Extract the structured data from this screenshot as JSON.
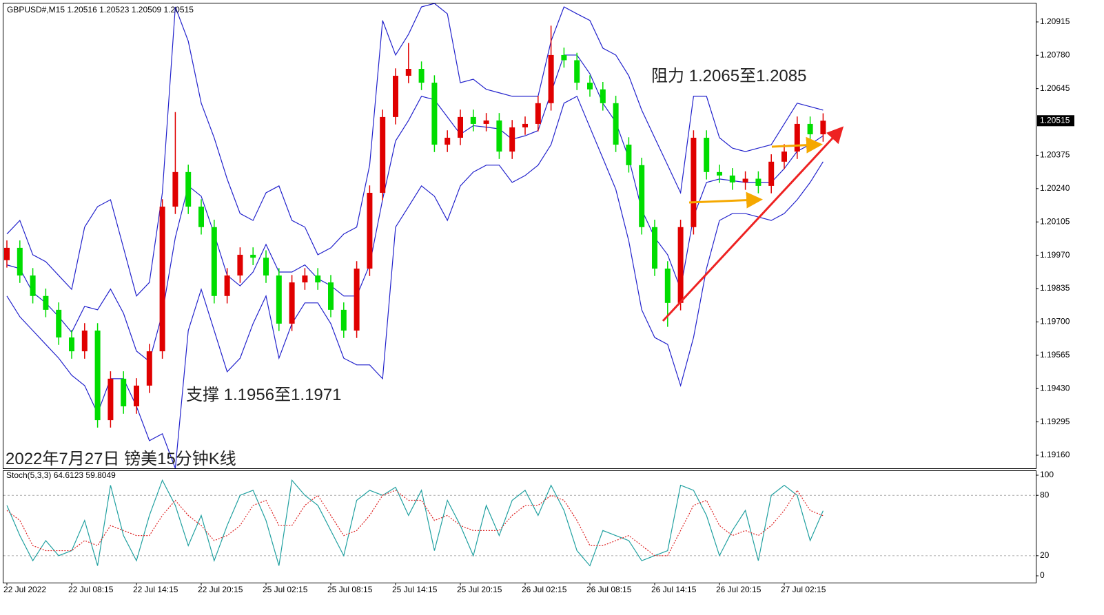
{
  "chart_data": [
    {
      "type": "candlestick",
      "title": "GBPUSD#,M15  1.20516 1.20523 1.20509 1.20515",
      "annotations": [
        "阻力 1.2065至1.2085",
        "支撑 1.1956至1.1971",
        "2022年7月27日 镑美15分钟K线"
      ],
      "categories": [
        "22 Jul 2022",
        null,
        null,
        null,
        null,
        "22 Jul 08:15",
        null,
        null,
        null,
        null,
        "22 Jul 14:15",
        null,
        null,
        null,
        null,
        "22 Jul 20:15",
        null,
        null,
        null,
        null,
        "25 Jul 02:15",
        null,
        null,
        null,
        null,
        "25 Jul 08:15",
        null,
        null,
        null,
        null,
        "25 Jul 14:15",
        null,
        null,
        null,
        null,
        "25 Jul 20:15",
        null,
        null,
        null,
        null,
        "26 Jul 02:15",
        null,
        null,
        null,
        null,
        "26 Jul 08:15",
        null,
        null,
        null,
        null,
        "26 Jul 14:15",
        null,
        null,
        null,
        null,
        "26 Jul 20:15",
        null,
        null,
        null,
        null,
        "27 Jul 02:15",
        null,
        null,
        null
      ],
      "open": [
        1.1995,
        1.2,
        1.19888,
        1.19805,
        1.19749,
        1.19637,
        1.19581,
        1.19665,
        1.19302,
        1.1947,
        1.19358,
        1.19442,
        1.19581,
        1.20167,
        1.20307,
        1.20167,
        1.20084,
        1.19805,
        1.19888,
        1.19972,
        1.1996,
        1.19888,
        1.19693,
        1.1986,
        1.19888,
        1.1986,
        1.19749,
        1.19665,
        1.19916,
        1.20223,
        1.2053,
        1.20697,
        1.20725,
        1.20669,
        1.20418,
        1.20446,
        1.2053,
        1.20502,
        1.20516,
        1.2039,
        1.20488,
        1.20502,
        1.20586,
        1.20781,
        1.2076,
        1.20669,
        1.20642,
        1.20586,
        1.20418,
        1.20335,
        1.20084,
        1.19916,
        1.19777,
        1.20084,
        1.20446,
        1.20307,
        1.20293,
        1.20265,
        1.2028,
        1.20251,
        1.20349,
        1.2039,
        1.20502,
        1.2046
      ],
      "high": [
        1.2003,
        1.2003,
        1.19918,
        1.19835,
        1.19779,
        1.19667,
        1.19695,
        1.19695,
        1.195,
        1.195,
        1.19472,
        1.19611,
        1.20197,
        1.2055,
        1.20337,
        1.20197,
        1.20114,
        1.19918,
        1.20002,
        1.20002,
        1.1999,
        1.19918,
        1.1989,
        1.19918,
        1.19918,
        1.1989,
        1.19779,
        1.19946,
        1.20253,
        1.2056,
        1.20727,
        1.2083,
        1.20755,
        1.20699,
        1.20476,
        1.2056,
        1.2056,
        1.20546,
        1.20546,
        1.20518,
        1.20532,
        1.20616,
        1.209,
        1.20811,
        1.2079,
        1.20699,
        1.20672,
        1.20616,
        1.20448,
        1.20365,
        1.20114,
        1.19946,
        1.20114,
        1.20476,
        1.20476,
        1.20337,
        1.20323,
        1.2031,
        1.2031,
        1.20379,
        1.2042,
        1.20532,
        1.20532,
        1.20545
      ],
      "low": [
        1.1992,
        1.19858,
        1.19775,
        1.19719,
        1.19607,
        1.19551,
        1.19551,
        1.19272,
        1.19272,
        1.19328,
        1.19328,
        1.19412,
        1.19551,
        1.20137,
        1.20137,
        1.20054,
        1.19775,
        1.19775,
        1.19858,
        1.1993,
        1.19858,
        1.19663,
        1.19663,
        1.1983,
        1.1983,
        1.19719,
        1.19635,
        1.19635,
        1.19886,
        1.20193,
        1.205,
        1.20667,
        1.20639,
        1.20388,
        1.20388,
        1.20416,
        1.20472,
        1.20472,
        1.2036,
        1.2036,
        1.20458,
        1.20472,
        1.20556,
        1.2073,
        1.20639,
        1.20612,
        1.20556,
        1.20388,
        1.20305,
        1.20054,
        1.19886,
        1.1968,
        1.19747,
        1.20054,
        1.20277,
        1.20263,
        1.20235,
        1.20235,
        1.20221,
        1.20221,
        1.20319,
        1.2036,
        1.2043,
        1.2043
      ],
      "close": [
        1.2,
        1.19888,
        1.19805,
        1.19749,
        1.19637,
        1.19581,
        1.19665,
        1.19302,
        1.1947,
        1.19358,
        1.19442,
        1.19581,
        1.20167,
        1.20307,
        1.20167,
        1.20084,
        1.19805,
        1.19888,
        1.19972,
        1.1996,
        1.19888,
        1.19693,
        1.1986,
        1.19888,
        1.1986,
        1.19749,
        1.19665,
        1.19916,
        1.20223,
        1.2053,
        1.20697,
        1.20725,
        1.20669,
        1.20418,
        1.20446,
        1.2053,
        1.20502,
        1.20516,
        1.2039,
        1.20488,
        1.20502,
        1.20586,
        1.20781,
        1.2076,
        1.20669,
        1.20642,
        1.20586,
        1.20418,
        1.20335,
        1.20084,
        1.19916,
        1.19777,
        1.20084,
        1.20446,
        1.20307,
        1.20293,
        1.20265,
        1.2028,
        1.20251,
        1.20349,
        1.2039,
        1.20502,
        1.2046,
        1.20515
      ],
      "up_color": "#e00000",
      "down_color": "#00dd00",
      "bands": [
        {
          "color": "#2222cc",
          "values": [
            1.20056,
            1.20111,
            1.19972,
            1.19944,
            1.19888,
            1.19832,
            1.20084,
            1.20167,
            1.20195,
            1.2,
            1.19805,
            1.1986,
            1.20223,
            1.20976,
            1.20837,
            1.20586,
            1.20446,
            1.20279,
            1.20139,
            1.20111,
            1.20223,
            1.20251,
            1.20111,
            1.20084,
            1.19972,
            1.2,
            1.20056,
            1.20084,
            1.20335,
            1.20921,
            1.20781,
            1.20865,
            1.20976,
            1.2099,
            1.20948,
            1.20669,
            1.20683,
            1.20642,
            1.20628,
            1.20614,
            1.20614,
            1.20614,
            1.20837,
            1.20976,
            1.20948,
            1.20921,
            1.20809,
            1.20781,
            1.20697,
            1.20558,
            1.20446,
            1.20335,
            1.20223,
            1.20614,
            1.20614,
            1.20446,
            1.20404,
            1.2039,
            1.20404,
            1.20418,
            1.20502,
            1.20586,
            1.20572,
            1.20558
          ]
        },
        {
          "color": "#2222cc",
          "values": [
            1.19931,
            1.19916,
            1.19819,
            1.19777,
            1.19721,
            1.19658,
            1.19763,
            1.19749,
            1.19833,
            1.19735,
            1.19582,
            1.1954,
            1.19735,
            1.20042,
            1.20251,
            1.20209,
            1.20056,
            1.19889,
            1.19846,
            1.19902,
            1.20014,
            1.19902,
            1.19902,
            1.19931,
            1.19875,
            1.19847,
            1.19805,
            1.19805,
            1.19931,
            1.20196,
            1.20433,
            1.20516,
            1.20614,
            1.206,
            1.2053,
            1.2046,
            1.20495,
            1.20489,
            1.20482,
            1.2044,
            1.20454,
            1.20475,
            1.20628,
            1.20781,
            1.20781,
            1.20705,
            1.20586,
            1.20509,
            1.20363,
            1.20154,
            1.20042,
            1.19972,
            1.19833,
            1.20126,
            1.20265,
            1.20279,
            1.20272,
            1.20265,
            1.20265,
            1.20265,
            1.20321,
            1.20391,
            1.20419,
            1.20454
          ]
        },
        {
          "color": "#2222cc",
          "values": [
            1.19805,
            1.19721,
            1.19665,
            1.19609,
            1.19553,
            1.19484,
            1.19442,
            1.1933,
            1.1947,
            1.1947,
            1.19358,
            1.19219,
            1.19247,
            1.19107,
            1.19665,
            1.19832,
            1.19665,
            1.19498,
            1.19553,
            1.19693,
            1.19805,
            1.19553,
            1.19693,
            1.19777,
            1.19777,
            1.19693,
            1.19553,
            1.19526,
            1.19526,
            1.1947,
            1.20084,
            1.20167,
            1.20251,
            1.20209,
            1.20111,
            1.20251,
            1.20307,
            1.20335,
            1.20335,
            1.20265,
            1.20293,
            1.20335,
            1.20418,
            1.20586,
            1.20614,
            1.20488,
            1.20363,
            1.20237,
            1.20028,
            1.19749,
            1.19637,
            1.19609,
            1.19442,
            1.19637,
            1.19916,
            1.20111,
            1.20139,
            1.20139,
            1.20125,
            1.20111,
            1.20139,
            1.20195,
            1.20265,
            1.20349
          ]
        }
      ],
      "ylim": [
        1.19107,
        1.2099
      ],
      "yticks": [
        1.20915,
        {
          "value": 1.2078,
          "label": "1.20780"
        },
        1.20645,
        1.20375,
        {
          "value": 1.2024,
          "label": "1.20240"
        },
        1.20105,
        {
          "value": 1.1997,
          "label": "1.19970"
        },
        1.19835,
        {
          "value": 1.197,
          "label": "1.19700"
        },
        1.19565,
        {
          "value": 1.1943,
          "label": "1.19430"
        },
        1.19295,
        {
          "value": 1.1916,
          "label": "1.19160"
        }
      ],
      "last_price": 1.20515
    },
    {
      "type": "line",
      "title": "Stoch(5,3,3) 64.6123 59.8049",
      "series": [
        {
          "color": "#20a0a0",
          "values": [
            70,
            40,
            15,
            35,
            20,
            25,
            55,
            10,
            90,
            40,
            15,
            60,
            95,
            70,
            30,
            60,
            15,
            50,
            80,
            85,
            55,
            10,
            95,
            80,
            70,
            45,
            20,
            75,
            85,
            80,
            88,
            60,
            85,
            25,
            75,
            50,
            20,
            70,
            40,
            75,
            85,
            60,
            90,
            65,
            25,
            10,
            45,
            40,
            35,
            15,
            20,
            25,
            90,
            85,
            60,
            20,
            45,
            65,
            15,
            80,
            90,
            80,
            35,
            64.6123
          ]
        },
        {
          "color": "#dd2222",
          "dashed": true,
          "values": [
            65,
            55,
            30,
            25,
            25,
            25,
            35,
            30,
            50,
            45,
            40,
            40,
            60,
            75,
            60,
            50,
            35,
            40,
            50,
            70,
            75,
            50,
            50,
            70,
            80,
            60,
            40,
            45,
            60,
            80,
            85,
            75,
            75,
            55,
            60,
            50,
            45,
            45,
            45,
            60,
            70,
            70,
            80,
            75,
            55,
            30,
            30,
            35,
            40,
            30,
            20,
            20,
            45,
            70,
            75,
            50,
            40,
            45,
            40,
            50,
            65,
            85,
            65,
            59.8049
          ]
        }
      ],
      "ylim": [
        -6.8,
        104.8
      ],
      "yticks": [
        100,
        80,
        20,
        0
      ],
      "levels": [
        80,
        20
      ]
    }
  ]
}
